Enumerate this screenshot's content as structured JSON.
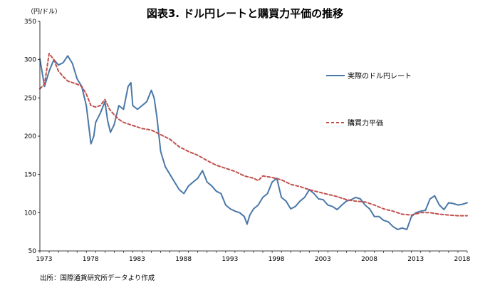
{
  "chart_data": {
    "type": "line",
    "title": "図表3. ドル円レートと購買力平価の推移",
    "ylabel": "（円/ドル）",
    "xlabel": "",
    "source": "出所：国際通貨研究所データより作成",
    "ylim": [
      50,
      350
    ],
    "yticks": [
      50,
      100,
      150,
      200,
      250,
      300,
      350
    ],
    "xlim": [
      1973,
      2019.0
    ],
    "xticks": [
      1973,
      1978,
      1983,
      1988,
      1993,
      1998,
      2003,
      2008,
      2013,
      2018
    ],
    "legend_position": "right",
    "series": [
      {
        "name": "実際のドル円レート",
        "style": "solid",
        "color": "#4a78a8",
        "x": [
          1973.0,
          1973.5,
          1974.0,
          1974.5,
          1975.0,
          1975.5,
          1976.0,
          1976.5,
          1977.0,
          1977.5,
          1978.0,
          1978.5,
          1978.8,
          1979.0,
          1979.5,
          1980.0,
          1980.3,
          1980.6,
          1981.0,
          1981.5,
          1982.0,
          1982.5,
          1982.8,
          1983.0,
          1983.5,
          1984.0,
          1984.5,
          1985.0,
          1985.3,
          1985.6,
          1986.0,
          1986.5,
          1987.0,
          1987.5,
          1988.0,
          1988.5,
          1989.0,
          1989.5,
          1990.0,
          1990.5,
          1991.0,
          1991.5,
          1992.0,
          1992.5,
          1993.0,
          1993.5,
          1994.0,
          1994.5,
          1995.0,
          1995.3,
          1995.6,
          1996.0,
          1996.5,
          1997.0,
          1997.5,
          1998.0,
          1998.5,
          1999.0,
          1999.5,
          2000.0,
          2000.5,
          2001.0,
          2001.5,
          2002.0,
          2002.5,
          2003.0,
          2003.5,
          2004.0,
          2004.5,
          2005.0,
          2005.5,
          2006.0,
          2006.5,
          2007.0,
          2007.5,
          2008.0,
          2008.5,
          2009.0,
          2009.5,
          2010.0,
          2010.5,
          2011.0,
          2011.5,
          2012.0,
          2012.5,
          2013.0,
          2013.5,
          2014.0,
          2014.5,
          2015.0,
          2015.5,
          2016.0,
          2016.5,
          2017.0,
          2017.5,
          2018.0,
          2018.5,
          2019.0
        ],
        "values": [
          301,
          265,
          285,
          300,
          293,
          296,
          305,
          295,
          275,
          265,
          240,
          190,
          200,
          218,
          230,
          245,
          220,
          205,
          215,
          240,
          235,
          265,
          270,
          240,
          235,
          240,
          245,
          260,
          250,
          225,
          180,
          160,
          150,
          140,
          130,
          125,
          135,
          140,
          145,
          155,
          140,
          135,
          128,
          125,
          110,
          105,
          102,
          100,
          95,
          85,
          97,
          105,
          110,
          120,
          125,
          140,
          145,
          120,
          115,
          105,
          108,
          115,
          120,
          130,
          125,
          118,
          117,
          110,
          108,
          104,
          110,
          115,
          117,
          120,
          118,
          110,
          105,
          95,
          95,
          90,
          88,
          82,
          78,
          80,
          78,
          95,
          100,
          102,
          103,
          118,
          122,
          110,
          104,
          113,
          112,
          110,
          111,
          113
        ]
      },
      {
        "name": "購買力平価",
        "style": "dashed",
        "color": "#c0504d",
        "x": [
          1973.0,
          1973.5,
          1974.0,
          1974.5,
          1975.0,
          1975.5,
          1976.0,
          1976.5,
          1977.0,
          1977.5,
          1978.0,
          1978.5,
          1979.0,
          1979.5,
          1980.0,
          1980.5,
          1981.0,
          1981.5,
          1982.0,
          1983.0,
          1984.0,
          1985.0,
          1986.0,
          1987.0,
          1988.0,
          1989.0,
          1990.0,
          1991.0,
          1992.0,
          1993.0,
          1994.0,
          1995.0,
          1996.0,
          1996.5,
          1997.0,
          1998.0,
          1999.0,
          2000.0,
          2001.0,
          2002.0,
          2003.0,
          2004.0,
          2005.0,
          2006.0,
          2007.0,
          2008.0,
          2009.0,
          2010.0,
          2011.0,
          2012.0,
          2013.0,
          2014.0,
          2015.0,
          2016.0,
          2017.0,
          2018.0,
          2019.0
        ],
        "values": [
          262,
          268,
          308,
          300,
          285,
          278,
          272,
          270,
          268,
          265,
          255,
          240,
          238,
          240,
          248,
          235,
          228,
          222,
          218,
          214,
          210,
          208,
          202,
          196,
          186,
          180,
          175,
          168,
          162,
          158,
          154,
          148,
          145,
          142,
          148,
          146,
          143,
          137,
          134,
          130,
          127,
          124,
          121,
          117,
          115,
          114,
          110,
          105,
          102,
          98,
          97,
          100,
          100,
          98,
          97,
          96,
          96
        ]
      }
    ]
  }
}
